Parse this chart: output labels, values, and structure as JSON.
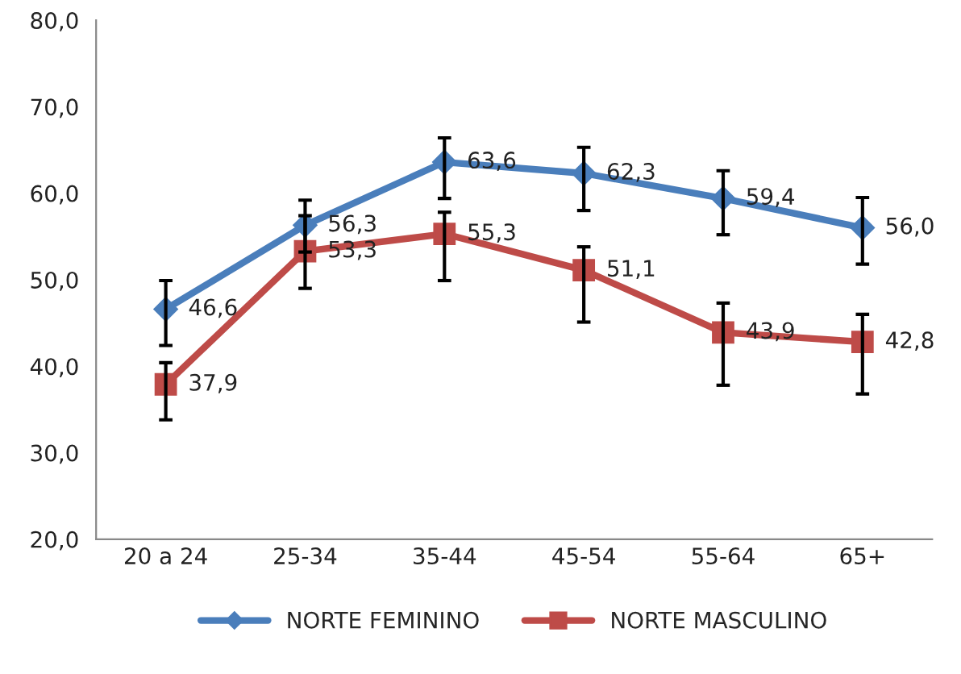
{
  "chart_data": {
    "type": "line",
    "categories": [
      "20 a 24",
      "25-34",
      "35-44",
      "45-54",
      "55-64",
      "65+"
    ],
    "series": [
      {
        "name": "NORTE FEMININO",
        "color": "#4a7ebb",
        "marker": "diamond",
        "values": [
          46.6,
          56.3,
          63.6,
          62.3,
          59.4,
          56.0
        ],
        "value_labels": [
          "46,6",
          "56,3",
          "63,6",
          "62,3",
          "59,4",
          "56,0"
        ],
        "errors": [
          [
            42.4,
            49.9
          ],
          [
            53.2,
            59.2
          ],
          [
            59.4,
            66.4
          ],
          [
            58.0,
            65.3
          ],
          [
            55.2,
            62.6
          ],
          [
            51.8,
            59.5
          ]
        ]
      },
      {
        "name": "NORTE MASCULINO",
        "color": "#be4b48",
        "marker": "square",
        "values": [
          37.9,
          53.3,
          55.3,
          51.1,
          43.9,
          42.8
        ],
        "value_labels": [
          "37,9",
          "53,3",
          "55,3",
          "51,1",
          "43,9",
          "42,8"
        ],
        "errors": [
          [
            33.8,
            40.4
          ],
          [
            49.0,
            57.4
          ],
          [
            49.9,
            57.8
          ],
          [
            45.1,
            53.8
          ],
          [
            37.8,
            47.3
          ],
          [
            36.8,
            46.0
          ]
        ]
      }
    ],
    "ylim": [
      20,
      80
    ],
    "yticks": [
      {
        "value": 20,
        "label": "20,0"
      },
      {
        "value": 30,
        "label": "30,0"
      },
      {
        "value": 40,
        "label": "40,0"
      },
      {
        "value": 50,
        "label": "50,0"
      },
      {
        "value": 60,
        "label": "60,0"
      },
      {
        "value": 70,
        "label": "70,0"
      },
      {
        "value": 80,
        "label": "80,0"
      }
    ],
    "grid": false,
    "legend": "bottom"
  }
}
